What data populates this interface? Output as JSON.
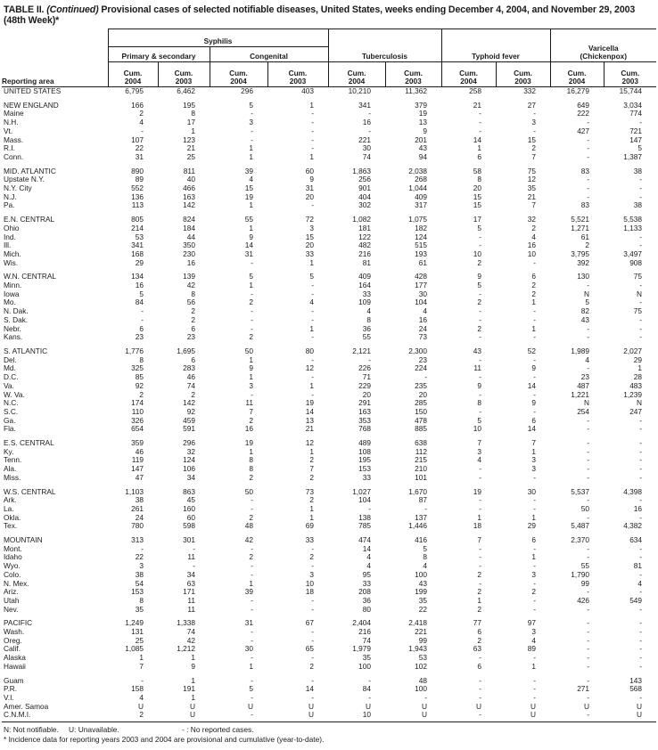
{
  "title": {
    "part1": "TABLE II.",
    "continued": "(Continued)",
    "part2": "Provisional cases of selected notifiable diseases, United States, weeks ending December 4, 2004, and November 29, 2003",
    "line2": "(48th Week)*"
  },
  "header": {
    "reporting_area": "Reporting area",
    "syphilis": "Syphilis",
    "primary_secondary": "Primary & secondary",
    "congenital": "Congenital",
    "tuberculosis": "Tuberculosis",
    "typhoid_fever": "Typhoid fever",
    "varicella_line1": "Varicella",
    "varicella_line2": "(Chickenpox)",
    "cum": "Cum.",
    "y2004": "2004",
    "y2003": "2003"
  },
  "columns": [
    "Syphilis Primary & secondary Cum. 2004",
    "Syphilis Primary & secondary Cum. 2003",
    "Syphilis Congenital Cum. 2004",
    "Syphilis Congenital Cum. 2003",
    "Tuberculosis Cum. 2004",
    "Tuberculosis Cum. 2003",
    "Typhoid fever Cum. 2004",
    "Typhoid fever Cum. 2003",
    "Varicella (Chickenpox) Cum. 2004",
    "Varicella (Chickenpox) Cum. 2003"
  ],
  "rows": [
    {
      "area": "UNITED STATES",
      "gap": false,
      "values": [
        "6,795",
        "6,462",
        "296",
        "403",
        "10,210",
        "11,362",
        "258",
        "332",
        "16,279",
        "15,744"
      ]
    },
    {
      "area": "NEW ENGLAND",
      "gap": true,
      "values": [
        "166",
        "195",
        "5",
        "1",
        "341",
        "379",
        "21",
        "27",
        "649",
        "3,034"
      ]
    },
    {
      "area": "Maine",
      "gap": false,
      "values": [
        "2",
        "8",
        "-",
        "-",
        "-",
        "19",
        "-",
        "-",
        "222",
        "774"
      ]
    },
    {
      "area": "N.H.",
      "gap": false,
      "values": [
        "4",
        "17",
        "3",
        "-",
        "16",
        "13",
        "-",
        "3",
        "-",
        "-"
      ]
    },
    {
      "area": "Vt.",
      "gap": false,
      "values": [
        "-",
        "1",
        "-",
        "-",
        "-",
        "9",
        "-",
        "-",
        "427",
        "721"
      ]
    },
    {
      "area": "Mass.",
      "gap": false,
      "values": [
        "107",
        "123",
        "-",
        "-",
        "221",
        "201",
        "14",
        "15",
        "-",
        "147"
      ]
    },
    {
      "area": "R.I.",
      "gap": false,
      "values": [
        "22",
        "21",
        "1",
        "-",
        "30",
        "43",
        "1",
        "2",
        "-",
        "5"
      ]
    },
    {
      "area": "Conn.",
      "gap": false,
      "values": [
        "31",
        "25",
        "1",
        "1",
        "74",
        "94",
        "6",
        "7",
        "-",
        "1,387"
      ]
    },
    {
      "area": "MID. ATLANTIC",
      "gap": true,
      "values": [
        "890",
        "811",
        "39",
        "60",
        "1,863",
        "2,038",
        "58",
        "75",
        "83",
        "38"
      ]
    },
    {
      "area": "Upstate N.Y.",
      "gap": false,
      "values": [
        "89",
        "40",
        "4",
        "9",
        "256",
        "268",
        "8",
        "12",
        "-",
        "-"
      ]
    },
    {
      "area": "N.Y. City",
      "gap": false,
      "values": [
        "552",
        "466",
        "15",
        "31",
        "901",
        "1,044",
        "20",
        "35",
        "-",
        "-"
      ]
    },
    {
      "area": "N.J.",
      "gap": false,
      "values": [
        "136",
        "163",
        "19",
        "20",
        "404",
        "409",
        "15",
        "21",
        "-",
        "-"
      ]
    },
    {
      "area": "Pa.",
      "gap": false,
      "values": [
        "113",
        "142",
        "1",
        "-",
        "302",
        "317",
        "15",
        "7",
        "83",
        "38"
      ]
    },
    {
      "area": "E.N. CENTRAL",
      "gap": true,
      "values": [
        "805",
        "824",
        "55",
        "72",
        "1,082",
        "1,075",
        "17",
        "32",
        "5,521",
        "5,538"
      ]
    },
    {
      "area": "Ohio",
      "gap": false,
      "values": [
        "214",
        "184",
        "1",
        "3",
        "181",
        "182",
        "5",
        "2",
        "1,271",
        "1,133"
      ]
    },
    {
      "area": "Ind.",
      "gap": false,
      "values": [
        "53",
        "44",
        "9",
        "15",
        "122",
        "124",
        "-",
        "4",
        "61",
        "-"
      ]
    },
    {
      "area": "Ill.",
      "gap": false,
      "values": [
        "341",
        "350",
        "14",
        "20",
        "482",
        "515",
        "-",
        "16",
        "2",
        "-"
      ]
    },
    {
      "area": "Mich.",
      "gap": false,
      "values": [
        "168",
        "230",
        "31",
        "33",
        "216",
        "193",
        "10",
        "10",
        "3,795",
        "3,497"
      ]
    },
    {
      "area": "Wis.",
      "gap": false,
      "values": [
        "29",
        "16",
        "-",
        "1",
        "81",
        "61",
        "2",
        "-",
        "392",
        "908"
      ]
    },
    {
      "area": "W.N. CENTRAL",
      "gap": true,
      "values": [
        "134",
        "139",
        "5",
        "5",
        "409",
        "428",
        "9",
        "6",
        "130",
        "75"
      ]
    },
    {
      "area": "Minn.",
      "gap": false,
      "values": [
        "16",
        "42",
        "1",
        "-",
        "164",
        "177",
        "5",
        "2",
        "-",
        "-"
      ]
    },
    {
      "area": "Iowa",
      "gap": false,
      "values": [
        "5",
        "8",
        "-",
        "-",
        "33",
        "30",
        "-",
        "2",
        "N",
        "N"
      ]
    },
    {
      "area": "Mo.",
      "gap": false,
      "values": [
        "84",
        "56",
        "2",
        "4",
        "109",
        "104",
        "2",
        "1",
        "5",
        "-"
      ]
    },
    {
      "area": "N. Dak.",
      "gap": false,
      "values": [
        "-",
        "2",
        "-",
        "-",
        "4",
        "4",
        "-",
        "-",
        "82",
        "75"
      ]
    },
    {
      "area": "S. Dak.",
      "gap": false,
      "values": [
        "-",
        "2",
        "-",
        "-",
        "8",
        "16",
        "-",
        "-",
        "43",
        "-"
      ]
    },
    {
      "area": "Nebr.",
      "gap": false,
      "values": [
        "6",
        "6",
        "-",
        "1",
        "36",
        "24",
        "2",
        "1",
        "-",
        "-"
      ]
    },
    {
      "area": "Kans.",
      "gap": false,
      "values": [
        "23",
        "23",
        "2",
        "-",
        "55",
        "73",
        "-",
        "-",
        "-",
        "-"
      ]
    },
    {
      "area": "S. ATLANTIC",
      "gap": true,
      "values": [
        "1,776",
        "1,695",
        "50",
        "80",
        "2,121",
        "2,300",
        "43",
        "52",
        "1,989",
        "2,027"
      ]
    },
    {
      "area": "Del.",
      "gap": false,
      "values": [
        "8",
        "6",
        "1",
        "-",
        "-",
        "23",
        "-",
        "-",
        "4",
        "29"
      ]
    },
    {
      "area": "Md.",
      "gap": false,
      "values": [
        "325",
        "283",
        "9",
        "12",
        "226",
        "224",
        "11",
        "9",
        "-",
        "1"
      ]
    },
    {
      "area": "D.C.",
      "gap": false,
      "values": [
        "85",
        "46",
        "1",
        "-",
        "71",
        "-",
        "-",
        "-",
        "23",
        "28"
      ]
    },
    {
      "area": "Va.",
      "gap": false,
      "values": [
        "92",
        "74",
        "3",
        "1",
        "229",
        "235",
        "9",
        "14",
        "487",
        "483"
      ]
    },
    {
      "area": "W. Va.",
      "gap": false,
      "values": [
        "2",
        "2",
        "-",
        "-",
        "20",
        "20",
        "-",
        "-",
        "1,221",
        "1,239"
      ]
    },
    {
      "area": "N.C.",
      "gap": false,
      "values": [
        "174",
        "142",
        "11",
        "19",
        "291",
        "285",
        "8",
        "9",
        "N",
        "N"
      ]
    },
    {
      "area": "S.C.",
      "gap": false,
      "values": [
        "110",
        "92",
        "7",
        "14",
        "163",
        "150",
        "-",
        "-",
        "254",
        "247"
      ]
    },
    {
      "area": "Ga.",
      "gap": false,
      "values": [
        "326",
        "459",
        "2",
        "13",
        "353",
        "478",
        "5",
        "6",
        "-",
        "-"
      ]
    },
    {
      "area": "Fla.",
      "gap": false,
      "values": [
        "654",
        "591",
        "16",
        "21",
        "768",
        "885",
        "10",
        "14",
        "-",
        "-"
      ]
    },
    {
      "area": "E.S. CENTRAL",
      "gap": true,
      "values": [
        "359",
        "296",
        "19",
        "12",
        "489",
        "638",
        "7",
        "7",
        "-",
        "-"
      ]
    },
    {
      "area": "Ky.",
      "gap": false,
      "values": [
        "46",
        "32",
        "1",
        "1",
        "108",
        "112",
        "3",
        "1",
        "-",
        "-"
      ]
    },
    {
      "area": "Tenn.",
      "gap": false,
      "values": [
        "119",
        "124",
        "8",
        "2",
        "195",
        "215",
        "4",
        "3",
        "-",
        "-"
      ]
    },
    {
      "area": "Ala.",
      "gap": false,
      "values": [
        "147",
        "106",
        "8",
        "7",
        "153",
        "210",
        "-",
        "3",
        "-",
        "-"
      ]
    },
    {
      "area": "Miss.",
      "gap": false,
      "values": [
        "47",
        "34",
        "2",
        "2",
        "33",
        "101",
        "-",
        "-",
        "-",
        "-"
      ]
    },
    {
      "area": "W.S. CENTRAL",
      "gap": true,
      "values": [
        "1,103",
        "863",
        "50",
        "73",
        "1,027",
        "1,670",
        "19",
        "30",
        "5,537",
        "4,398"
      ]
    },
    {
      "area": "Ark.",
      "gap": false,
      "values": [
        "38",
        "45",
        "-",
        "2",
        "104",
        "87",
        "-",
        "-",
        "-",
        "-"
      ]
    },
    {
      "area": "La.",
      "gap": false,
      "values": [
        "261",
        "160",
        "-",
        "1",
        "-",
        "-",
        "-",
        "-",
        "50",
        "16"
      ]
    },
    {
      "area": "Okla.",
      "gap": false,
      "values": [
        "24",
        "60",
        "2",
        "1",
        "138",
        "137",
        "1",
        "1",
        "-",
        "-"
      ]
    },
    {
      "area": "Tex.",
      "gap": false,
      "values": [
        "780",
        "598",
        "48",
        "69",
        "785",
        "1,446",
        "18",
        "29",
        "5,487",
        "4,382"
      ]
    },
    {
      "area": "MOUNTAIN",
      "gap": true,
      "values": [
        "313",
        "301",
        "42",
        "33",
        "474",
        "416",
        "7",
        "6",
        "2,370",
        "634"
      ]
    },
    {
      "area": "Mont.",
      "gap": false,
      "values": [
        "-",
        "-",
        "-",
        "-",
        "14",
        "5",
        "-",
        "-",
        "-",
        "-"
      ]
    },
    {
      "area": "Idaho",
      "gap": false,
      "values": [
        "22",
        "11",
        "2",
        "2",
        "4",
        "8",
        "-",
        "1",
        "-",
        "-"
      ]
    },
    {
      "area": "Wyo.",
      "gap": false,
      "values": [
        "3",
        "-",
        "-",
        "-",
        "4",
        "4",
        "-",
        "-",
        "55",
        "81"
      ]
    },
    {
      "area": "Colo.",
      "gap": false,
      "values": [
        "38",
        "34",
        "-",
        "3",
        "95",
        "100",
        "2",
        "3",
        "1,790",
        "-"
      ]
    },
    {
      "area": "N. Mex.",
      "gap": false,
      "values": [
        "54",
        "63",
        "1",
        "10",
        "33",
        "43",
        "-",
        "-",
        "99",
        "4"
      ]
    },
    {
      "area": "Ariz.",
      "gap": false,
      "values": [
        "153",
        "171",
        "39",
        "18",
        "208",
        "199",
        "2",
        "2",
        "-",
        "-"
      ]
    },
    {
      "area": "Utah",
      "gap": false,
      "values": [
        "8",
        "11",
        "-",
        "-",
        "36",
        "35",
        "1",
        "-",
        "426",
        "549"
      ]
    },
    {
      "area": "Nev.",
      "gap": false,
      "values": [
        "35",
        "11",
        "-",
        "-",
        "80",
        "22",
        "2",
        "-",
        "-",
        "-"
      ]
    },
    {
      "area": "PACIFIC",
      "gap": true,
      "values": [
        "1,249",
        "1,338",
        "31",
        "67",
        "2,404",
        "2,418",
        "77",
        "97",
        "-",
        "-"
      ]
    },
    {
      "area": "Wash.",
      "gap": false,
      "values": [
        "131",
        "74",
        "-",
        "-",
        "216",
        "221",
        "6",
        "3",
        "-",
        "-"
      ]
    },
    {
      "area": "Oreg.",
      "gap": false,
      "values": [
        "25",
        "42",
        "-",
        "-",
        "74",
        "99",
        "2",
        "4",
        "-",
        "-"
      ]
    },
    {
      "area": "Calif.",
      "gap": false,
      "values": [
        "1,085",
        "1,212",
        "30",
        "65",
        "1,979",
        "1,943",
        "63",
        "89",
        "-",
        "-"
      ]
    },
    {
      "area": "Alaska",
      "gap": false,
      "values": [
        "1",
        "1",
        "-",
        "-",
        "35",
        "53",
        "-",
        "-",
        "-",
        "-"
      ]
    },
    {
      "area": "Hawaii",
      "gap": false,
      "values": [
        "7",
        "9",
        "1",
        "2",
        "100",
        "102",
        "6",
        "1",
        "-",
        "-"
      ]
    },
    {
      "area": "Guam",
      "gap": true,
      "values": [
        "-",
        "1",
        "-",
        "-",
        "-",
        "48",
        "-",
        "-",
        "-",
        "143"
      ]
    },
    {
      "area": "P.R.",
      "gap": false,
      "values": [
        "158",
        "191",
        "5",
        "14",
        "84",
        "100",
        "-",
        "-",
        "271",
        "568"
      ]
    },
    {
      "area": "V.I.",
      "gap": false,
      "values": [
        "4",
        "1",
        "-",
        "-",
        "-",
        "-",
        "-",
        "-",
        "-",
        "-"
      ]
    },
    {
      "area": "Amer. Samoa",
      "gap": false,
      "values": [
        "U",
        "U",
        "U",
        "U",
        "U",
        "U",
        "U",
        "U",
        "U",
        "U"
      ]
    },
    {
      "area": "C.N.M.I.",
      "gap": false,
      "values": [
        "2",
        "U",
        "-",
        "U",
        "10",
        "U",
        "-",
        "U",
        "-",
        "U"
      ]
    }
  ],
  "footnotes": {
    "legend_n": "N: Not notifiable.",
    "legend_u": "U: Unavailable.",
    "legend_dash": "- : No reported cases.",
    "note": "* Incidence data for reporting years 2003 and 2004 are provisional and cumulative (year-to-date)."
  }
}
